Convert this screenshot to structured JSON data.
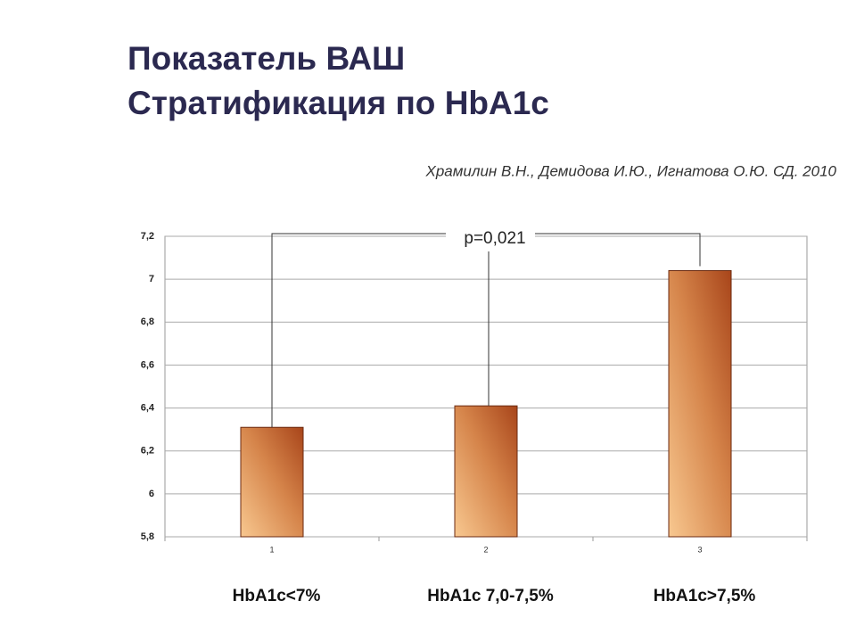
{
  "chart_data": {
    "type": "bar",
    "title": [
      "Показатель ВАШ",
      "Стратификация по HbA1c"
    ],
    "subtitle": "Храмилин В.Н., Демидова И.Ю., Игнатова О.Ю. СД. 2010",
    "annotation": "p=0,021",
    "categories": [
      "1",
      "2",
      "3"
    ],
    "group_labels": [
      "HbA1c<7%",
      "HbA1c 7,0-7,5%",
      "HbA1c>7,5%"
    ],
    "values": [
      6.31,
      6.41,
      7.04
    ],
    "color": "#b5531e",
    "ylim": [
      5.8,
      7.2
    ],
    "yticks": [
      {
        "value": 5.8,
        "label": "5,8"
      },
      6,
      {
        "value": 6.2,
        "label": "6,2"
      },
      {
        "value": 6.4,
        "label": "6,4"
      },
      {
        "value": 6.6,
        "label": "6,6"
      },
      {
        "value": 6.8,
        "label": "6,8"
      },
      7,
      {
        "value": 7.2,
        "label": "7,2"
      }
    ],
    "grid": true
  }
}
